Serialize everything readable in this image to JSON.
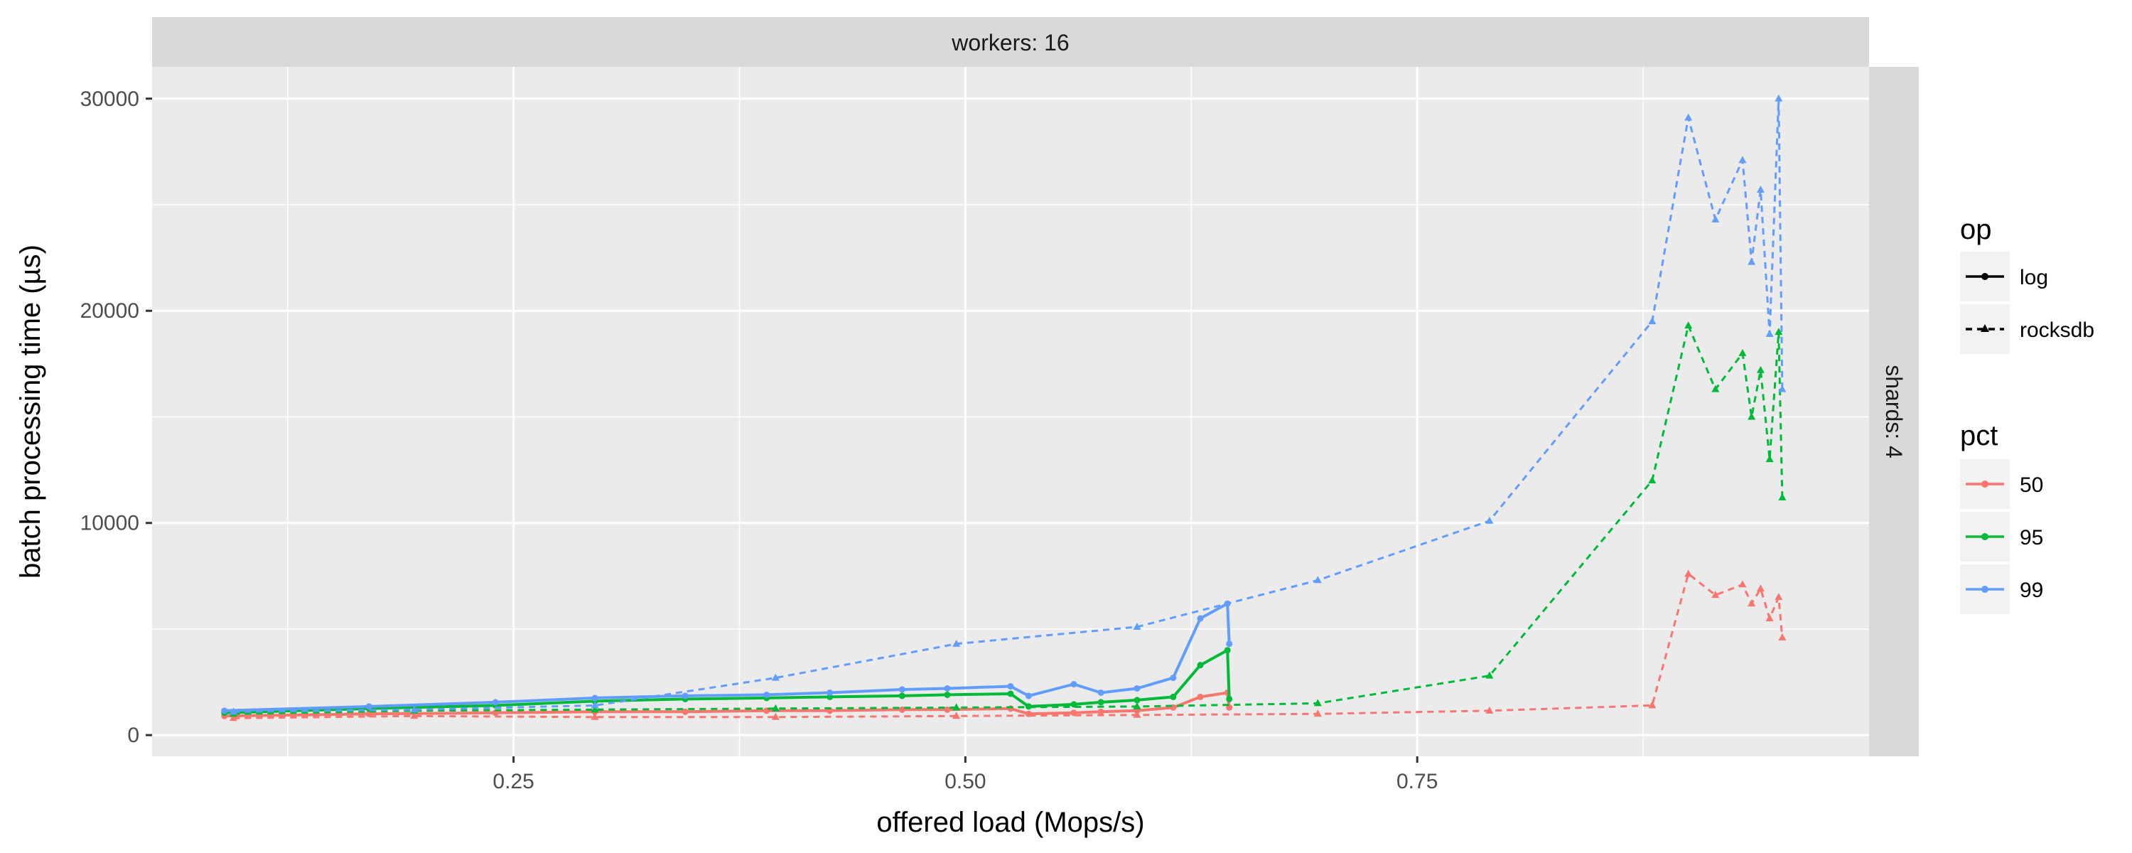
{
  "chart_data": {
    "type": "line",
    "facet_top": "workers: 16",
    "facet_right": "shards: 4",
    "xlabel": "offered load (Mops/s)",
    "ylabel": "batch processing time (µs)",
    "xlim": [
      0.05,
      1.0
    ],
    "ylim": [
      -1000,
      31500
    ],
    "x_ticks": [
      0.25,
      0.5,
      0.75
    ],
    "x_tick_labels": [
      "0.25",
      "0.50",
      "0.75"
    ],
    "y_ticks": [
      0,
      10000,
      20000,
      30000
    ],
    "y_tick_labels": [
      "0",
      "10000",
      "20000",
      "30000"
    ],
    "grid": true,
    "legend_position": "right",
    "legend": {
      "op": {
        "title": "op",
        "entries": [
          {
            "key": "log",
            "label": "log"
          },
          {
            "key": "rocksdb",
            "label": "rocksdb"
          }
        ]
      },
      "pct": {
        "title": "pct",
        "entries": [
          {
            "key": "50",
            "label": "50",
            "color": "#F8766D"
          },
          {
            "key": "95",
            "label": "95",
            "color": "#00BA38"
          },
          {
            "key": "99",
            "label": "99",
            "color": "#619CFF"
          }
        ]
      }
    },
    "series": [
      {
        "op": "log",
        "pct": "50",
        "color": "#F8766D",
        "x": [
          0.09,
          0.17,
          0.24,
          0.295,
          0.345,
          0.39,
          0.425,
          0.465,
          0.49,
          0.525,
          0.535,
          0.56,
          0.575,
          0.595,
          0.615,
          0.63,
          0.645,
          0.646
        ],
        "y": [
          900,
          1000,
          1050,
          1100,
          1100,
          1150,
          1150,
          1200,
          1200,
          1250,
          1000,
          1050,
          1100,
          1150,
          1300,
          1800,
          2000,
          1300
        ]
      },
      {
        "op": "log",
        "pct": "95",
        "color": "#00BA38",
        "x": [
          0.09,
          0.17,
          0.24,
          0.295,
          0.345,
          0.39,
          0.425,
          0.465,
          0.49,
          0.525,
          0.535,
          0.56,
          0.575,
          0.595,
          0.615,
          0.63,
          0.645,
          0.646
        ],
        "y": [
          1050,
          1250,
          1400,
          1600,
          1700,
          1750,
          1800,
          1850,
          1900,
          1950,
          1350,
          1450,
          1550,
          1650,
          1800,
          3300,
          4000,
          1700
        ]
      },
      {
        "op": "log",
        "pct": "99",
        "color": "#619CFF",
        "x": [
          0.09,
          0.17,
          0.24,
          0.295,
          0.345,
          0.39,
          0.425,
          0.465,
          0.49,
          0.525,
          0.535,
          0.56,
          0.575,
          0.595,
          0.615,
          0.63,
          0.645,
          0.646
        ],
        "y": [
          1150,
          1350,
          1550,
          1750,
          1850,
          1900,
          2000,
          2150,
          2200,
          2300,
          1850,
          2400,
          2000,
          2200,
          2700,
          5500,
          6200,
          4300
        ]
      },
      {
        "op": "rocksdb",
        "pct": "50",
        "color": "#F8766D",
        "x": [
          0.095,
          0.195,
          0.295,
          0.395,
          0.495,
          0.595,
          0.695,
          0.79,
          0.88,
          0.9,
          0.915,
          0.93,
          0.935,
          0.94,
          0.945,
          0.95,
          0.952
        ],
        "y": [
          800,
          900,
          850,
          850,
          900,
          950,
          1000,
          1150,
          1400,
          7600,
          6600,
          7100,
          6200,
          6900,
          5500,
          6500,
          4600
        ]
      },
      {
        "op": "rocksdb",
        "pct": "95",
        "color": "#00BA38",
        "x": [
          0.095,
          0.195,
          0.295,
          0.395,
          0.495,
          0.595,
          0.695,
          0.79,
          0.88,
          0.9,
          0.915,
          0.93,
          0.935,
          0.94,
          0.945,
          0.95,
          0.952
        ],
        "y": [
          1000,
          1150,
          1200,
          1250,
          1300,
          1350,
          1500,
          2800,
          12000,
          19300,
          16300,
          18000,
          15000,
          17200,
          13000,
          19000,
          11200
        ]
      },
      {
        "op": "rocksdb",
        "pct": "99",
        "color": "#619CFF",
        "x": [
          0.095,
          0.195,
          0.295,
          0.395,
          0.495,
          0.595,
          0.695,
          0.79,
          0.88,
          0.9,
          0.915,
          0.93,
          0.935,
          0.94,
          0.945,
          0.95,
          0.952
        ],
        "y": [
          1100,
          1200,
          1400,
          2700,
          4300,
          5100,
          7300,
          10100,
          19500,
          29100,
          24300,
          27100,
          22300,
          25700,
          18900,
          30000,
          16300
        ]
      }
    ]
  }
}
